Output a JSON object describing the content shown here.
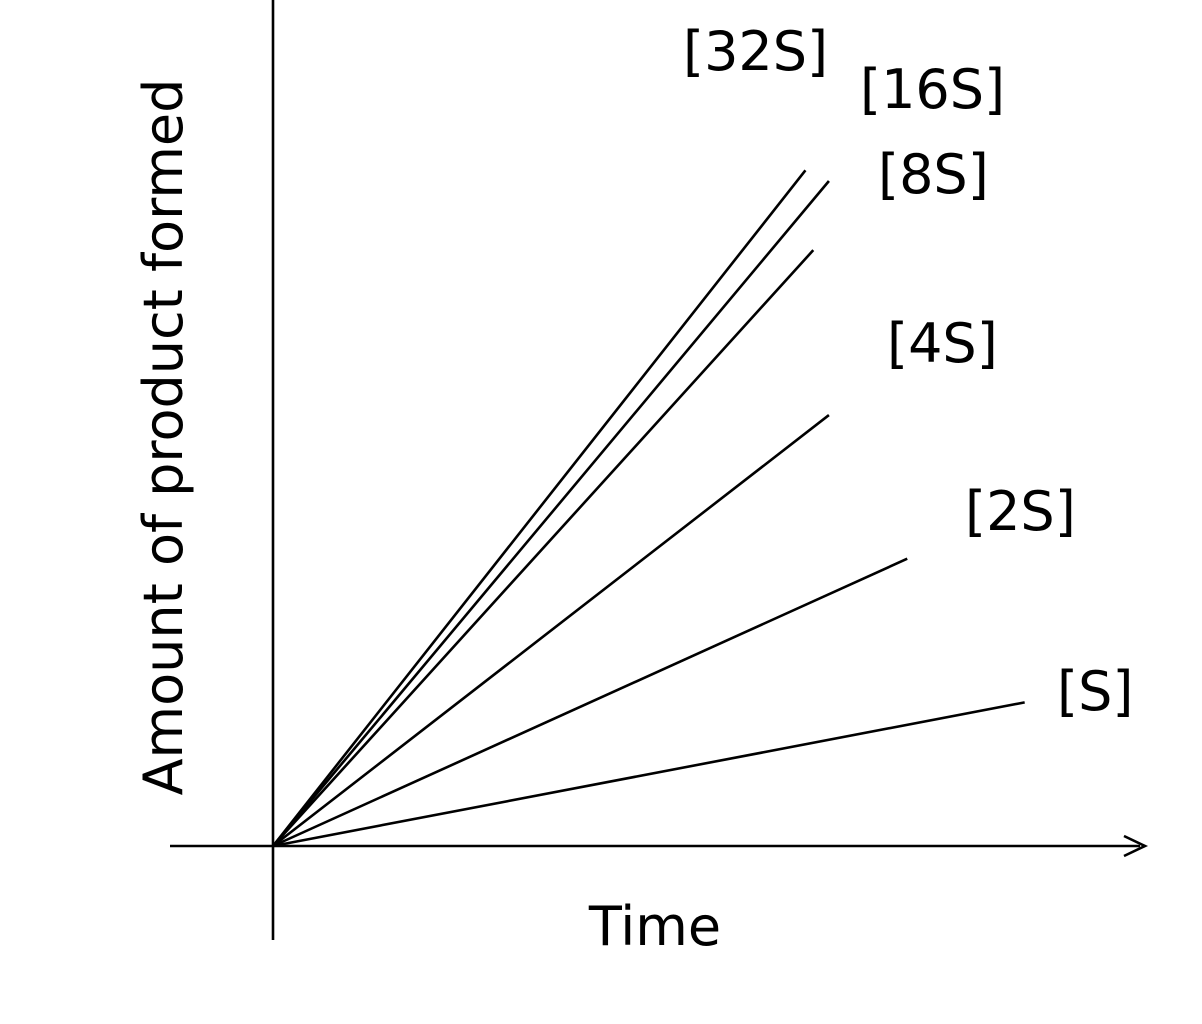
{
  "chart_data": {
    "type": "line",
    "xlabel": "Time",
    "ylabel": "Amount of product formed",
    "ticks_shown": false,
    "grid": false,
    "legend": "direct labels at line ends",
    "series": [
      {
        "name": "[S]",
        "x": [
          0,
          0.96
        ],
        "y": [
          0,
          0.27
        ]
      },
      {
        "name": "[2S]",
        "x": [
          0,
          0.81
        ],
        "y": [
          0,
          0.54
        ]
      },
      {
        "name": "[4S]",
        "x": [
          0,
          0.71
        ],
        "y": [
          0,
          0.81
        ]
      },
      {
        "name": "[8S]",
        "x": [
          0,
          0.69
        ],
        "y": [
          0,
          1.12
        ]
      },
      {
        "name": "[16S]",
        "x": [
          0,
          0.71
        ],
        "y": [
          0,
          1.25
        ]
      },
      {
        "name": "[32S]",
        "x": [
          0,
          0.68
        ],
        "y": [
          0,
          1.27
        ]
      }
    ],
    "colors": {
      "line": "#000000",
      "background": "#ffffff"
    }
  }
}
